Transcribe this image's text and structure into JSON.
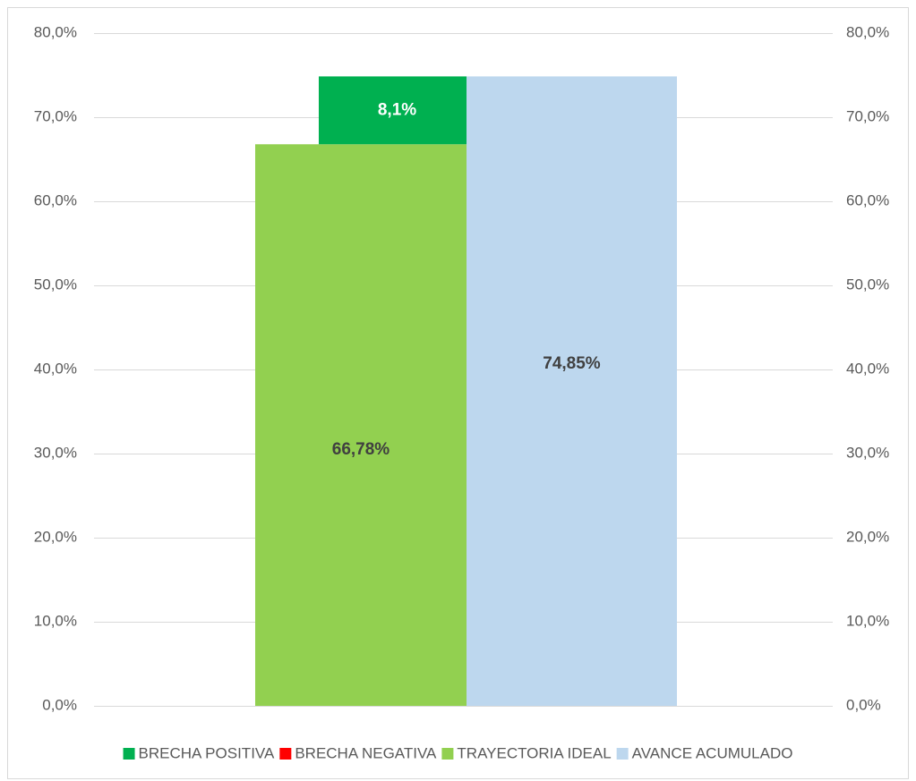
{
  "chart_data": {
    "type": "bar",
    "categories": [
      null
    ],
    "series": [
      {
        "name": "BRECHA POSITIVA",
        "color": "#00b050",
        "values": [
          8.07
        ],
        "value_labels": [
          "8,1%"
        ]
      },
      {
        "name": "BRECHA NEGATIVA",
        "color": "#ff0000",
        "values": [
          0
        ]
      },
      {
        "name": "TRAYECTORIA IDEAL",
        "color": "#92d050",
        "values": [
          66.78
        ],
        "value_labels": [
          "66,78%"
        ]
      },
      {
        "name": "AVANCE ACUMULADO",
        "color": "#bdd7ee",
        "values": [
          74.85
        ],
        "value_labels": [
          "74,85%"
        ],
        "axis": "y2"
      }
    ],
    "ylim": [
      0,
      80
    ],
    "yticks": [
      {
        "value": 0,
        "label": "0,0%"
      },
      {
        "value": 10,
        "label": "10,0%"
      },
      {
        "value": 20,
        "label": "20,0%"
      },
      {
        "value": 30,
        "label": "30,0%"
      },
      {
        "value": 40,
        "label": "40,0%"
      },
      {
        "value": 50,
        "label": "50,0%"
      },
      {
        "value": 60,
        "label": "60,0%"
      },
      {
        "value": 70,
        "label": "70,0%"
      },
      {
        "value": 80,
        "label": "80,0%"
      }
    ],
    "y2lim": [
      0,
      80
    ],
    "y2ticks": [
      {
        "value": 0,
        "label": "0,0%"
      },
      {
        "value": 10,
        "label": "10,0%"
      },
      {
        "value": 20,
        "label": "20,0%"
      },
      {
        "value": 30,
        "label": "30,0%"
      },
      {
        "value": 40,
        "label": "40,0%"
      },
      {
        "value": 50,
        "label": "50,0%"
      },
      {
        "value": 60,
        "label": "60,0%"
      },
      {
        "value": 70,
        "label": "70,0%"
      },
      {
        "value": 80,
        "label": "80,0%"
      }
    ],
    "grid": true,
    "legend": "bottom"
  }
}
